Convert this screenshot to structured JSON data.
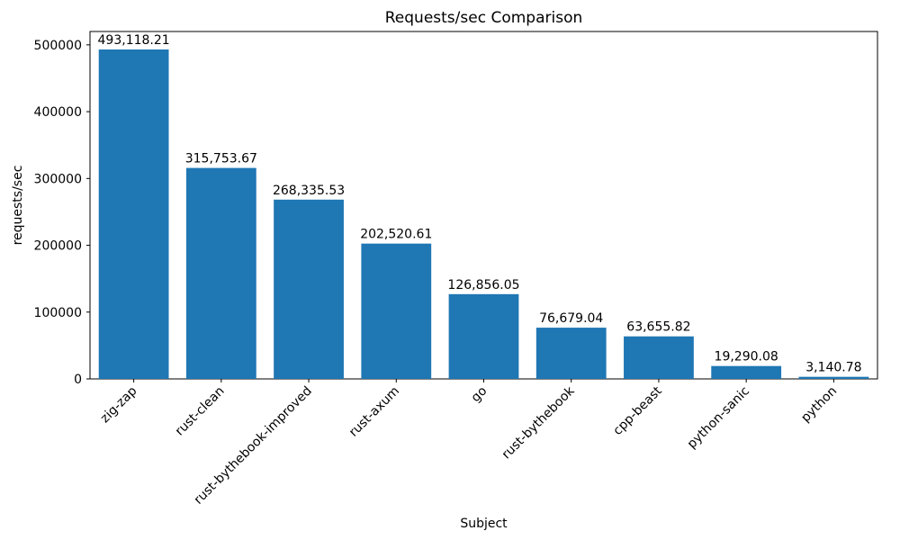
{
  "chart_data": {
    "type": "bar",
    "title": "Requests/sec Comparison",
    "xlabel": "Subject",
    "ylabel": "requests/sec",
    "categories": [
      "zig-zap",
      "rust-clean",
      "rust-bythebook-improved",
      "rust-axum",
      "go",
      "rust-bythebook",
      "cpp-beast",
      "python-sanic",
      "python"
    ],
    "values": [
      493118.21,
      315753.67,
      268335.53,
      202520.61,
      126856.05,
      76679.04,
      63655.82,
      19290.08,
      3140.78
    ],
    "value_labels": [
      "493,118.21",
      "315,753.67",
      "268,335.53",
      "202,520.61",
      "126,856.05",
      "76,679.04",
      "63,655.82",
      "19,290.08",
      "3,140.78"
    ],
    "y_ticks": [
      0,
      100000,
      200000,
      300000,
      400000,
      500000
    ],
    "ylim": [
      0,
      520000
    ],
    "bar_color": "#1f77b4",
    "axis_color": "#000000",
    "grid": false,
    "legend_position": "none",
    "x_tick_rotation": 45
  }
}
